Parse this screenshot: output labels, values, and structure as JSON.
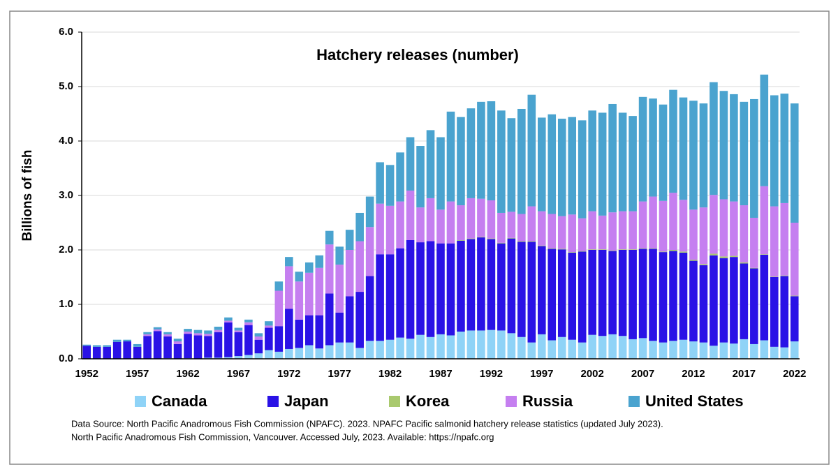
{
  "chart_data": {
    "type": "stacked_bar",
    "title": "Hatchery releases (number)",
    "y_label": "Billions of fish",
    "categories": [
      "1952",
      null,
      null,
      null,
      null,
      "1957",
      null,
      null,
      null,
      null,
      "1962",
      null,
      null,
      null,
      null,
      "1967",
      null,
      null,
      null,
      null,
      "1972",
      null,
      null,
      null,
      null,
      "1977",
      null,
      null,
      null,
      null,
      "1982",
      null,
      null,
      null,
      null,
      "1987",
      null,
      null,
      null,
      null,
      "1992",
      null,
      null,
      null,
      null,
      "1997",
      null,
      null,
      null,
      null,
      "2002",
      null,
      null,
      null,
      null,
      "2007",
      null,
      null,
      null,
      null,
      "2012",
      null,
      null,
      null,
      null,
      "2017",
      null,
      null,
      null,
      null,
      "2022"
    ],
    "series": [
      {
        "name": "Canada",
        "color": "#8fd3f7",
        "values": [
          0,
          0,
          0,
          0,
          0,
          0,
          0,
          0,
          0.01,
          0,
          0.01,
          0,
          0.02,
          0.02,
          0.03,
          0.05,
          0.07,
          0.1,
          0.16,
          0.13,
          0.18,
          0.2,
          0.25,
          0.19,
          0.25,
          0.3,
          0.3,
          0.2,
          0.33,
          0.33,
          0.35,
          0.39,
          0.37,
          0.44,
          0.4,
          0.45,
          0.43,
          0.5,
          0.52,
          0.52,
          0.53,
          0.52,
          0.47,
          0.4,
          0.3,
          0.45,
          0.34,
          0.4,
          0.35,
          0.3,
          0.44,
          0.42,
          0.45,
          0.42,
          0.36,
          0.38,
          0.33,
          0.3,
          0.33,
          0.35,
          0.32,
          0.3,
          0.24,
          0.3,
          0.28,
          0.36,
          0.27,
          0.34,
          0.22,
          0.21,
          0.32
        ]
      },
      {
        "name": "Japan",
        "color": "#2a12e6",
        "values": [
          0.24,
          0.22,
          0.22,
          0.31,
          0.32,
          0.22,
          0.42,
          0.51,
          0.4,
          0.27,
          0.45,
          0.43,
          0.4,
          0.47,
          0.64,
          0.44,
          0.55,
          0.25,
          0.41,
          0.47,
          0.74,
          0.52,
          0.55,
          0.61,
          0.95,
          0.55,
          0.85,
          1.03,
          1.19,
          1.59,
          1.57,
          1.64,
          1.81,
          1.7,
          1.76,
          1.67,
          1.69,
          1.67,
          1.68,
          1.71,
          1.67,
          1.6,
          1.74,
          1.75,
          1.85,
          1.62,
          1.68,
          1.61,
          1.6,
          1.67,
          1.56,
          1.58,
          1.53,
          1.58,
          1.64,
          1.64,
          1.69,
          1.66,
          1.65,
          1.6,
          1.48,
          1.42,
          1.66,
          1.55,
          1.59,
          1.39,
          1.39,
          1.57,
          1.28,
          1.31,
          0.83
        ]
      },
      {
        "name": "Korea",
        "color": "#a9c96e",
        "values": [
          0,
          0,
          0,
          0,
          0,
          0,
          0,
          0,
          0,
          0,
          0,
          0,
          0,
          0,
          0,
          0,
          0,
          0,
          0,
          0,
          0,
          0,
          0,
          0,
          0,
          0,
          0,
          0,
          0,
          0,
          0,
          0,
          0,
          0,
          0,
          0,
          0,
          0.01,
          0.01,
          0.01,
          0.01,
          0.01,
          0.01,
          0.01,
          0.01,
          0.01,
          0.01,
          0.01,
          0.01,
          0.01,
          0.01,
          0.01,
          0.01,
          0.01,
          0.01,
          0.01,
          0.01,
          0.01,
          0.02,
          0.02,
          0.02,
          0.02,
          0.03,
          0.03,
          0.02,
          0.02,
          0.01,
          0.01,
          0.01,
          0.01,
          0.01
        ]
      },
      {
        "name": "Russia",
        "color": "#c57ff0",
        "values": [
          0,
          0,
          0,
          0,
          0,
          0,
          0.03,
          0.03,
          0.04,
          0.05,
          0.04,
          0.04,
          0.04,
          0.04,
          0.03,
          0.03,
          0.05,
          0.06,
          0.04,
          0.65,
          0.78,
          0.7,
          0.78,
          0.87,
          0.9,
          0.88,
          0.85,
          0.93,
          0.9,
          0.93,
          0.89,
          0.86,
          0.91,
          0.64,
          0.79,
          0.62,
          0.77,
          0.64,
          0.74,
          0.7,
          0.7,
          0.55,
          0.48,
          0.5,
          0.64,
          0.63,
          0.63,
          0.6,
          0.69,
          0.6,
          0.7,
          0.62,
          0.7,
          0.7,
          0.7,
          0.86,
          0.95,
          0.93,
          1.05,
          0.95,
          0.92,
          1.04,
          1.08,
          1.05,
          1.0,
          1.05,
          0.92,
          1.25,
          1.29,
          1.33,
          1.34
        ]
      },
      {
        "name": "United States",
        "color": "#4aa3cf",
        "values": [
          0.02,
          0.03,
          0.03,
          0.04,
          0.03,
          0.05,
          0.04,
          0.04,
          0.04,
          0.05,
          0.05,
          0.06,
          0.06,
          0.06,
          0.06,
          0.05,
          0.05,
          0.06,
          0.08,
          0.17,
          0.17,
          0.18,
          0.19,
          0.23,
          0.25,
          0.33,
          0.37,
          0.52,
          0.56,
          0.76,
          0.75,
          0.9,
          0.98,
          1.13,
          1.25,
          1.33,
          1.65,
          1.62,
          1.65,
          1.78,
          1.82,
          1.88,
          1.72,
          1.93,
          2.05,
          1.72,
          1.83,
          1.79,
          1.79,
          1.8,
          1.85,
          1.89,
          1.99,
          1.81,
          1.75,
          1.92,
          1.8,
          1.77,
          1.89,
          1.88,
          2.0,
          1.91,
          2.07,
          1.99,
          1.97,
          1.9,
          2.18,
          2.05,
          2.04,
          2.01,
          2.19
        ]
      }
    ],
    "ylim": [
      0,
      6
    ],
    "yticks": [
      {
        "value": 0,
        "label": "0.0"
      },
      {
        "value": 1,
        "label": "1.0"
      },
      {
        "value": 2,
        "label": "2.0"
      },
      {
        "value": 3,
        "label": "3.0"
      },
      {
        "value": 4,
        "label": "4.0"
      },
      {
        "value": 5,
        "label": "5.0"
      },
      {
        "value": 6,
        "label": "6.0"
      }
    ],
    "grid": true,
    "legend": "bottom",
    "notes": [
      "Data Source:  North Pacific Anadromous Fish Commission (NPAFC). 2023. NPAFC Pacific salmonid hatchery release statistics (updated July 2023).",
      "North Pacific Anadromous Fish Commission, Vancouver. Accessed July, 2023. Available: https://npafc.org"
    ]
  }
}
